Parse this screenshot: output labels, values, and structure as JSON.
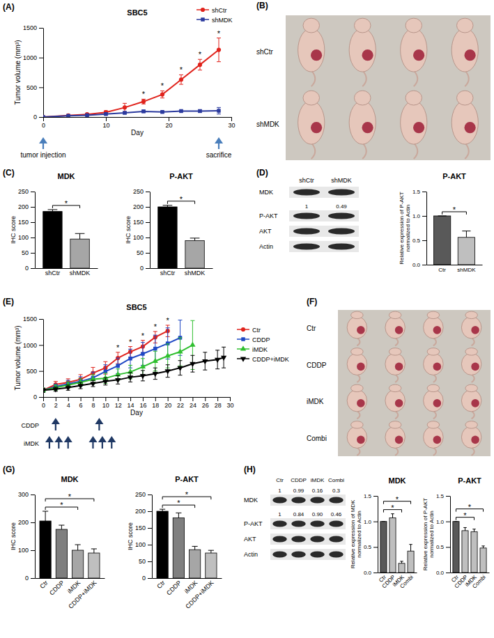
{
  "chart_data": [
    {
      "panel": "(A)",
      "type": "line",
      "title": "SBC5",
      "xlabel": "Day",
      "ylabel": "Tumor volume (mm³)",
      "xlim": [
        0,
        30
      ],
      "xticks": [
        0,
        10,
        20,
        30
      ],
      "ylim": [
        0,
        1500
      ],
      "yticks": [
        0,
        500,
        1000,
        1500
      ],
      "legend": "upper right",
      "series": [
        {
          "name": "shCtr",
          "color": "#e0231c",
          "marker": "circle",
          "x": [
            0,
            4,
            7,
            10,
            13,
            16,
            19,
            22,
            25,
            28
          ],
          "values": [
            0,
            25,
            45,
            80,
            160,
            260,
            380,
            630,
            880,
            1130
          ],
          "errors": [
            0,
            8,
            15,
            25,
            70,
            40,
            60,
            80,
            90,
            200
          ]
        },
        {
          "name": "shMDK",
          "color": "#2b3a9e",
          "marker": "square",
          "x": [
            0,
            4,
            7,
            10,
            13,
            16,
            19,
            22,
            25,
            28
          ],
          "values": [
            0,
            20,
            30,
            50,
            70,
            95,
            85,
            100,
            100,
            105
          ],
          "errors": [
            0,
            6,
            10,
            15,
            20,
            20,
            15,
            15,
            20,
            55
          ]
        }
      ],
      "significance": {
        "label": "*",
        "x": [
          16,
          19,
          22,
          25,
          28
        ]
      },
      "events": [
        {
          "label": "tumor injection",
          "x": 0
        },
        {
          "label": "sacrifice",
          "x": 28
        }
      ]
    },
    {
      "panel": "(C)",
      "type": "bar",
      "title": "MDK",
      "ylabel": "IHC score",
      "categories": [
        "shCtr",
        "shMDK"
      ],
      "values": [
        185,
        95
      ],
      "errors": [
        6,
        18
      ],
      "colors": [
        "#000000",
        "#a6a6a6"
      ],
      "ylim": [
        0,
        250
      ],
      "yticks": [
        0,
        50,
        100,
        150,
        200,
        250
      ],
      "comparisons": [
        {
          "pair": [
            "shCtr",
            "shMDK"
          ],
          "label": "*"
        }
      ]
    },
    {
      "type": "bar",
      "title": "P-AKT",
      "ylabel": "IHC score",
      "categories": [
        "shCtr",
        "shMDK"
      ],
      "values": [
        200,
        90
      ],
      "errors": [
        5,
        8
      ],
      "colors": [
        "#000000",
        "#a6a6a6"
      ],
      "ylim": [
        0,
        250
      ],
      "yticks": [
        0,
        50,
        100,
        150,
        200,
        250
      ],
      "comparisons": [
        {
          "pair": [
            "shCtr",
            "shMDK"
          ],
          "label": "*"
        }
      ]
    },
    {
      "type": "bar",
      "title": "P-AKT",
      "ylabel": "Relative expression of P-AKT normalized to Actin",
      "categories": [
        "Ctr",
        "shMDK"
      ],
      "values": [
        1,
        0.56
      ],
      "errors": [
        0,
        0.13
      ],
      "colors": [
        "#595959",
        "#bfbfbf"
      ],
      "ylim": [
        0,
        1.5
      ],
      "yticks": [
        {
          "value": 0,
          "label": "0.0"
        },
        0.5,
        {
          "value": 1,
          "label": "1.0"
        },
        1.5
      ],
      "comparisons": [
        {
          "pair": [
            "Ctr",
            "shMDK"
          ],
          "label": "*"
        }
      ]
    },
    {
      "panel": "(E)",
      "type": "line",
      "title": "SBC5",
      "xlabel": "Day",
      "ylabel": "Tumor volume (mm³)",
      "xlim": [
        0,
        30
      ],
      "xticks": [
        0,
        2,
        4,
        6,
        8,
        10,
        12,
        14,
        16,
        18,
        20,
        22,
        24,
        26,
        28,
        30
      ],
      "ylim": [
        0,
        1500
      ],
      "yticks": [
        0,
        500,
        1000,
        1500
      ],
      "legend": "right",
      "series": [
        {
          "name": "Ctr",
          "color": "#e0231c",
          "marker": "circle",
          "x": [
            0,
            2,
            4,
            6,
            8,
            10,
            12,
            14,
            16,
            18,
            20
          ],
          "values": [
            130,
            240,
            280,
            340,
            460,
            560,
            750,
            870,
            970,
            1150,
            1270
          ],
          "errors": [
            40,
            60,
            70,
            90,
            110,
            120,
            110,
            100,
            120,
            110,
            110
          ]
        },
        {
          "name": "CDDP",
          "color": "#1f48c4",
          "marker": "square",
          "x": [
            0,
            2,
            4,
            6,
            8,
            10,
            12,
            14,
            16,
            18,
            20,
            22
          ],
          "values": [
            130,
            200,
            250,
            300,
            370,
            490,
            600,
            740,
            830,
            930,
            1030,
            1140
          ],
          "errors": [
            40,
            50,
            70,
            90,
            110,
            130,
            150,
            180,
            220,
            260,
            300,
            340
          ]
        },
        {
          "name": "iMDK",
          "color": "#2fbf2f",
          "marker": "triangle",
          "x": [
            0,
            2,
            4,
            6,
            8,
            10,
            12,
            14,
            16,
            18,
            20,
            22,
            24
          ],
          "values": [
            130,
            180,
            230,
            280,
            340,
            360,
            430,
            480,
            580,
            690,
            790,
            870,
            1000
          ],
          "errors": [
            40,
            50,
            60,
            70,
            90,
            100,
            110,
            130,
            160,
            190,
            230,
            270,
            470
          ]
        },
        {
          "name": "CDDP+iMDK",
          "color": "#000000",
          "marker": "triangle-down",
          "x": [
            0,
            2,
            4,
            6,
            8,
            10,
            12,
            14,
            16,
            18,
            20,
            22,
            24,
            26,
            28,
            29
          ],
          "values": [
            130,
            150,
            180,
            220,
            260,
            300,
            330,
            380,
            410,
            450,
            500,
            560,
            640,
            690,
            720,
            760
          ],
          "errors": [
            40,
            40,
            50,
            60,
            60,
            70,
            80,
            90,
            100,
            110,
            120,
            140,
            160,
            170,
            180,
            200
          ]
        }
      ],
      "significance": {
        "label": "*",
        "x": [
          12,
          14,
          16,
          18,
          20
        ]
      },
      "treatments": [
        {
          "name": "CDDP",
          "x": [
            2,
            9
          ]
        },
        {
          "name": "iMDK",
          "x": [
            1,
            2.5,
            4,
            8,
            9.5,
            11
          ]
        }
      ]
    },
    {
      "panel": "(G)",
      "type": "bar",
      "title": "MDK",
      "ylabel": "IHC score",
      "categories": [
        "Ctr",
        "CDDP",
        "iMDK",
        "CDDP+iMDK"
      ],
      "values": [
        205,
        175,
        100,
        90
      ],
      "errors": [
        35,
        15,
        20,
        15
      ],
      "colors": [
        "#000000",
        "#7f7f7f",
        "#a6a6a6",
        "#bfbfbf"
      ],
      "ylim": [
        0,
        300
      ],
      "yticks": [
        0,
        100,
        200,
        300
      ],
      "comparisons": [
        {
          "pair": [
            "Ctr",
            "iMDK"
          ],
          "label": "*"
        },
        {
          "pair": [
            "Ctr",
            "CDDP+iMDK"
          ],
          "label": "*"
        }
      ]
    },
    {
      "type": "bar",
      "title": "P-AKT",
      "ylabel": "IHC score",
      "categories": [
        "Ctr",
        "CDDP",
        "iMDK",
        "CDDP+iMDK"
      ],
      "values": [
        200,
        180,
        85,
        75
      ],
      "errors": [
        6,
        15,
        10,
        8
      ],
      "colors": [
        "#000000",
        "#7f7f7f",
        "#a6a6a6",
        "#bfbfbf"
      ],
      "ylim": [
        0,
        250
      ],
      "yticks": [
        0,
        50,
        100,
        150,
        200,
        250
      ],
      "comparisons": [
        {
          "pair": [
            "Ctr",
            "iMDK"
          ],
          "label": "*"
        },
        {
          "pair": [
            "Ctr",
            "CDDP+iMDK"
          ],
          "label": "*"
        }
      ]
    },
    {
      "type": "bar",
      "title": "MDK",
      "ylabel": "Relative expression of MDK normalized to Actin",
      "categories": [
        "Ctr",
        "CDDP",
        "iMDK",
        "Combi"
      ],
      "values": [
        1,
        1.07,
        0.18,
        0.42
      ],
      "errors": [
        0,
        0.08,
        0.04,
        0.13
      ],
      "colors": [
        "#595959",
        "#bfbfbf",
        "#bfbfbf",
        "#bfbfbf"
      ],
      "ylim": [
        0,
        1.5
      ],
      "yticks": [
        {
          "value": 0,
          "label": "0.0"
        },
        0.5,
        {
          "value": 1,
          "label": "1.0"
        },
        1.5
      ],
      "comparisons": [
        {
          "pair": [
            "Ctr",
            "iMDK"
          ],
          "label": "*"
        },
        {
          "pair": [
            "Ctr",
            "Combi"
          ],
          "label": "*"
        }
      ]
    },
    {
      "type": "bar",
      "title": "P-AKT",
      "ylabel": "Relative expression of P-AKT normalized to Actin",
      "categories": [
        "Ctr",
        "CDDP",
        "iMDK",
        "Combi"
      ],
      "values": [
        1,
        0.82,
        0.8,
        0.48
      ],
      "errors": [
        0,
        0.06,
        0.05,
        0.04
      ],
      "colors": [
        "#595959",
        "#bfbfbf",
        "#bfbfbf",
        "#bfbfbf"
      ],
      "ylim": [
        0,
        1.5
      ],
      "yticks": [
        {
          "value": 0,
          "label": "0.0"
        },
        0.5,
        {
          "value": 1,
          "label": "1.0"
        },
        1.5
      ],
      "comparisons": [
        {
          "pair": [
            "Ctr",
            "iMDK"
          ],
          "label": "*"
        },
        {
          "pair": [
            "Ctr",
            "Combi"
          ],
          "label": "*"
        }
      ]
    }
  ],
  "photos": [
    {
      "panel": "(B)",
      "rows": [
        "shCtr",
        "shMDK"
      ],
      "mice": 4
    },
    {
      "panel": "(F)",
      "rows": [
        "Ctr",
        "CDDP",
        "iMDK",
        "Combi"
      ],
      "mice": 4
    }
  ],
  "blots": [
    {
      "panel": "(D)",
      "columns": [
        "shCtr",
        "shMDK"
      ],
      "rows": [
        {
          "name": "MDK"
        },
        {
          "name": "P-AKT",
          "ratios": [
            "1",
            "0.49"
          ]
        },
        {
          "name": "AKT"
        },
        {
          "name": "Actin"
        }
      ]
    },
    {
      "panel": "(H)",
      "columns": [
        "Ctr",
        "CDDP",
        "iMDK",
        "Combi"
      ],
      "rows": [
        {
          "name": "MDK",
          "ratios": [
            "1",
            "0.99",
            "0.16",
            "0.3"
          ]
        },
        {
          "name": "P-AKT",
          "ratios": [
            "1",
            "0.84",
            "0.90",
            "0.46"
          ]
        },
        {
          "name": "AKT"
        },
        {
          "name": "Actin"
        }
      ]
    }
  ]
}
